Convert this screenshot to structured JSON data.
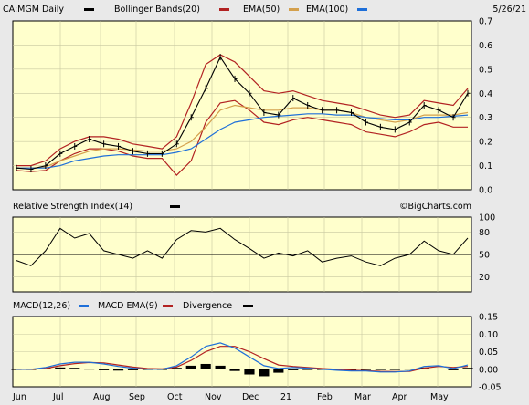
{
  "header": {
    "symbol": "CA:MGM Daily",
    "date": "5/26/21",
    "legend": [
      {
        "label": "Bollinger Bands(20)",
        "color": "#b22222"
      },
      {
        "label": "EMA(50)",
        "color": "#d4a04c"
      },
      {
        "label": "EMA(100)",
        "color": "#1e6fd9"
      }
    ]
  },
  "rsi_header": {
    "label": "Relative Strength Index(14)",
    "watermark": "©BigCharts.com"
  },
  "macd_header": {
    "items": [
      {
        "label": "MACD(12,26)",
        "color": "#1e6fd9"
      },
      {
        "label": "MACD EMA(9)",
        "color": "#b22222"
      },
      {
        "label": "Divergence",
        "color": "#000000"
      }
    ]
  },
  "x_labels": [
    "Jun",
    "Jul",
    "Aug",
    "Sep",
    "Oct",
    "Nov",
    "Dec",
    "21",
    "Feb",
    "Mar",
    "Apr",
    "May"
  ],
  "colors": {
    "price": "#000000",
    "bollinger": "#b22222",
    "ema50": "#d4a04c",
    "ema100": "#1e6fd9",
    "rsi": "#000000",
    "plot_bg": "#ffffcc"
  },
  "chart_data": [
    {
      "type": "line",
      "title": "CA:MGM Daily",
      "ylim": [
        0.0,
        0.7
      ],
      "yticks": [
        "0.0",
        "0.1",
        "0.2",
        "0.3",
        "0.4",
        "0.5",
        "0.6",
        "0.7"
      ],
      "x": [
        "Jun",
        "Jun",
        "Jul",
        "Jul",
        "Jul",
        "Aug",
        "Aug",
        "Sep",
        "Sep",
        "Sep",
        "Oct",
        "Oct",
        "Oct",
        "Oct",
        "Nov",
        "Nov",
        "Nov",
        "Dec",
        "Dec",
        "Dec",
        "21",
        "21",
        "Feb",
        "Feb",
        "Mar",
        "Mar",
        "Mar",
        "Apr",
        "Apr",
        "May",
        "May",
        "May"
      ],
      "series": [
        {
          "name": "Price",
          "values": [
            0.09,
            0.085,
            0.1,
            0.15,
            0.18,
            0.21,
            0.19,
            0.18,
            0.16,
            0.15,
            0.15,
            0.19,
            0.3,
            0.42,
            0.55,
            0.46,
            0.4,
            0.32,
            0.31,
            0.38,
            0.35,
            0.33,
            0.33,
            0.32,
            0.28,
            0.26,
            0.25,
            0.28,
            0.35,
            0.33,
            0.3,
            0.4
          ]
        },
        {
          "name": "Bollinger Bands(20) upper",
          "values": [
            0.1,
            0.1,
            0.12,
            0.17,
            0.2,
            0.22,
            0.22,
            0.21,
            0.19,
            0.18,
            0.17,
            0.22,
            0.36,
            0.52,
            0.56,
            0.53,
            0.47,
            0.41,
            0.4,
            0.41,
            0.39,
            0.37,
            0.36,
            0.35,
            0.33,
            0.31,
            0.3,
            0.31,
            0.37,
            0.36,
            0.35,
            0.42
          ]
        },
        {
          "name": "Bollinger Bands(20) lower",
          "values": [
            0.08,
            0.075,
            0.08,
            0.12,
            0.15,
            0.17,
            0.17,
            0.16,
            0.14,
            0.13,
            0.13,
            0.06,
            0.12,
            0.28,
            0.36,
            0.37,
            0.33,
            0.28,
            0.27,
            0.29,
            0.3,
            0.29,
            0.28,
            0.27,
            0.24,
            0.23,
            0.22,
            0.24,
            0.27,
            0.28,
            0.26,
            0.26
          ]
        },
        {
          "name": "EMA(50)",
          "values": [
            0.09,
            0.09,
            0.095,
            0.12,
            0.14,
            0.16,
            0.17,
            0.17,
            0.165,
            0.16,
            0.16,
            0.17,
            0.2,
            0.26,
            0.33,
            0.35,
            0.34,
            0.33,
            0.33,
            0.34,
            0.34,
            0.33,
            0.33,
            0.32,
            0.3,
            0.29,
            0.28,
            0.29,
            0.31,
            0.31,
            0.31,
            0.32
          ]
        },
        {
          "name": "EMA(100)",
          "values": [
            0.09,
            0.09,
            0.09,
            0.1,
            0.12,
            0.13,
            0.14,
            0.145,
            0.145,
            0.145,
            0.145,
            0.155,
            0.17,
            0.21,
            0.25,
            0.28,
            0.29,
            0.3,
            0.305,
            0.31,
            0.315,
            0.315,
            0.31,
            0.31,
            0.3,
            0.295,
            0.29,
            0.29,
            0.3,
            0.3,
            0.305,
            0.31
          ]
        }
      ]
    },
    {
      "type": "line",
      "title": "Relative Strength Index(14)",
      "ylim": [
        0,
        100
      ],
      "yticks": [
        "20",
        "50",
        "80",
        "100"
      ],
      "reference_line": 50,
      "x": [
        "Jun",
        "Jun",
        "Jul",
        "Jul",
        "Jul",
        "Aug",
        "Aug",
        "Sep",
        "Sep",
        "Sep",
        "Oct",
        "Oct",
        "Oct",
        "Oct",
        "Nov",
        "Nov",
        "Nov",
        "Dec",
        "Dec",
        "Dec",
        "21",
        "21",
        "Feb",
        "Feb",
        "Mar",
        "Mar",
        "Mar",
        "Apr",
        "Apr",
        "May",
        "May",
        "May"
      ],
      "series": [
        {
          "name": "RSI",
          "values": [
            42,
            35,
            55,
            85,
            72,
            78,
            55,
            50,
            45,
            55,
            45,
            70,
            82,
            80,
            85,
            70,
            58,
            45,
            52,
            48,
            55,
            40,
            45,
            48,
            40,
            35,
            45,
            50,
            68,
            55,
            50,
            72
          ]
        }
      ]
    },
    {
      "type": "line",
      "title": "MACD(12,26)",
      "ylim": [
        -0.05,
        0.15
      ],
      "yticks": [
        "-0.05",
        "0.00",
        "0.05",
        "0.10",
        "0.15"
      ],
      "x": [
        "Jun",
        "Jun",
        "Jul",
        "Jul",
        "Jul",
        "Aug",
        "Aug",
        "Sep",
        "Sep",
        "Sep",
        "Oct",
        "Oct",
        "Oct",
        "Oct",
        "Nov",
        "Nov",
        "Nov",
        "Dec",
        "Dec",
        "Dec",
        "21",
        "21",
        "Feb",
        "Feb",
        "Mar",
        "Mar",
        "Mar",
        "Apr",
        "Apr",
        "May",
        "May",
        "May"
      ],
      "series": [
        {
          "name": "MACD(12,26)",
          "values": [
            0.0,
            0.0,
            0.005,
            0.015,
            0.02,
            0.02,
            0.015,
            0.008,
            0.003,
            0.0,
            0.0,
            0.01,
            0.035,
            0.065,
            0.075,
            0.06,
            0.035,
            0.01,
            0.002,
            0.005,
            0.003,
            0.0,
            -0.003,
            -0.005,
            -0.005,
            -0.008,
            -0.008,
            -0.005,
            0.008,
            0.01,
            0.002,
            0.012
          ]
        },
        {
          "name": "MACD EMA(9)",
          "values": [
            0.0,
            0.0,
            0.002,
            0.01,
            0.016,
            0.019,
            0.018,
            0.012,
            0.006,
            0.002,
            0.001,
            0.006,
            0.025,
            0.05,
            0.065,
            0.065,
            0.05,
            0.03,
            0.012,
            0.008,
            0.005,
            0.002,
            0.0,
            -0.003,
            -0.004,
            -0.006,
            -0.007,
            -0.006,
            0.003,
            0.008,
            0.005,
            0.008
          ]
        },
        {
          "name": "Divergence",
          "values": [
            0.0,
            0.0,
            0.003,
            0.005,
            0.004,
            0.001,
            -0.003,
            -0.004,
            -0.003,
            -0.002,
            -0.001,
            0.004,
            0.01,
            0.015,
            0.01,
            -0.005,
            -0.015,
            -0.02,
            -0.01,
            -0.003,
            -0.002,
            -0.002,
            -0.003,
            -0.002,
            -0.001,
            -0.002,
            -0.001,
            0.001,
            0.005,
            0.002,
            -0.003,
            0.004
          ]
        }
      ]
    }
  ]
}
